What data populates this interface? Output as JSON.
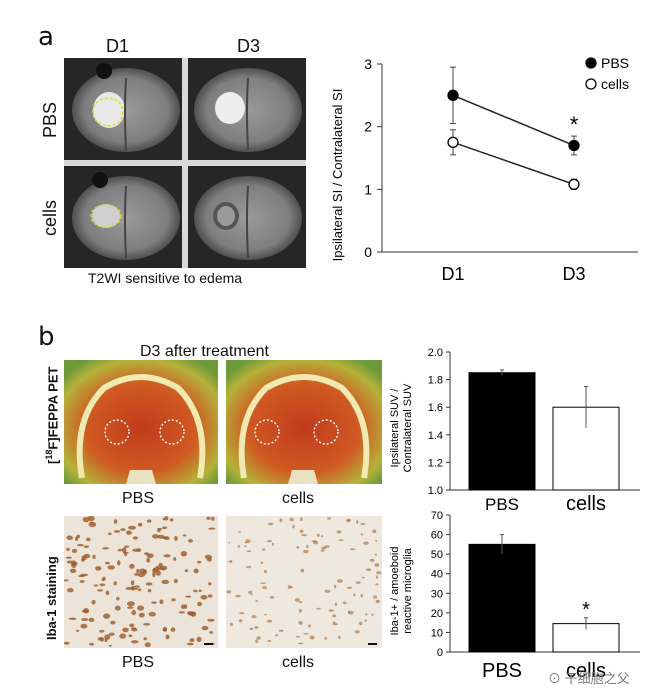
{
  "panel_a": {
    "letter": "a",
    "col_labels": [
      "D1",
      "D3"
    ],
    "row_labels": [
      "PBS",
      "cells"
    ],
    "caption": "T2WI sensitive to edema"
  },
  "panel_b": {
    "letter": "b",
    "pet_title": "D3 after treatment",
    "pet_row_label_sup": "18",
    "pet_row_label_el": "F",
    "pet_row_label_rest": "FEPPA PET",
    "pet_col_labels": [
      "PBS",
      "cells"
    ],
    "iba_row_label": "Iba-1 staining",
    "iba_col_labels": [
      "PBS",
      "cells"
    ]
  },
  "watermark": "干细胞之父",
  "chart_data": [
    {
      "type": "line",
      "x": [
        "D1",
        "D3"
      ],
      "series": [
        {
          "name": "PBS",
          "values": [
            2.5,
            1.7
          ],
          "errors": [
            0.45,
            0.15
          ]
        },
        {
          "name": "cells",
          "values": [
            1.75,
            1.08
          ],
          "errors": [
            0.2,
            0.08
          ]
        }
      ],
      "ylabel": "Ipsilateral SI / Contralateral SI",
      "ylim": [
        0,
        3
      ],
      "yticks": [
        "0",
        "1",
        "2",
        "3"
      ],
      "annotation": "*",
      "legend": "top-right",
      "colors": {
        "PBS": "#000000",
        "cells": "#ffffff"
      }
    },
    {
      "type": "bar",
      "categories": [
        "PBS",
        "cells"
      ],
      "values": [
        1.85,
        1.6
      ],
      "errors": [
        0.02,
        0.15
      ],
      "ylabel": "Ipsilateral SUV / Contralateral SUV",
      "ylim": [
        1.0,
        2.0
      ],
      "yticks": [
        "1.0",
        "1.2",
        "1.4",
        "1.6",
        "1.8",
        "2.0"
      ],
      "colors": [
        "#000000",
        "#ffffff"
      ]
    },
    {
      "type": "bar",
      "categories": [
        "PBS",
        "cells"
      ],
      "values": [
        55,
        14.5
      ],
      "errors": [
        5,
        3
      ],
      "ylabel": "Iba-1+ / amoeboid reactive microglia",
      "ylim": [
        0,
        70
      ],
      "yticks": [
        "0",
        "10",
        "20",
        "30",
        "40",
        "50",
        "60",
        "70"
      ],
      "annotation": "*",
      "colors": [
        "#000000",
        "#ffffff"
      ]
    }
  ]
}
